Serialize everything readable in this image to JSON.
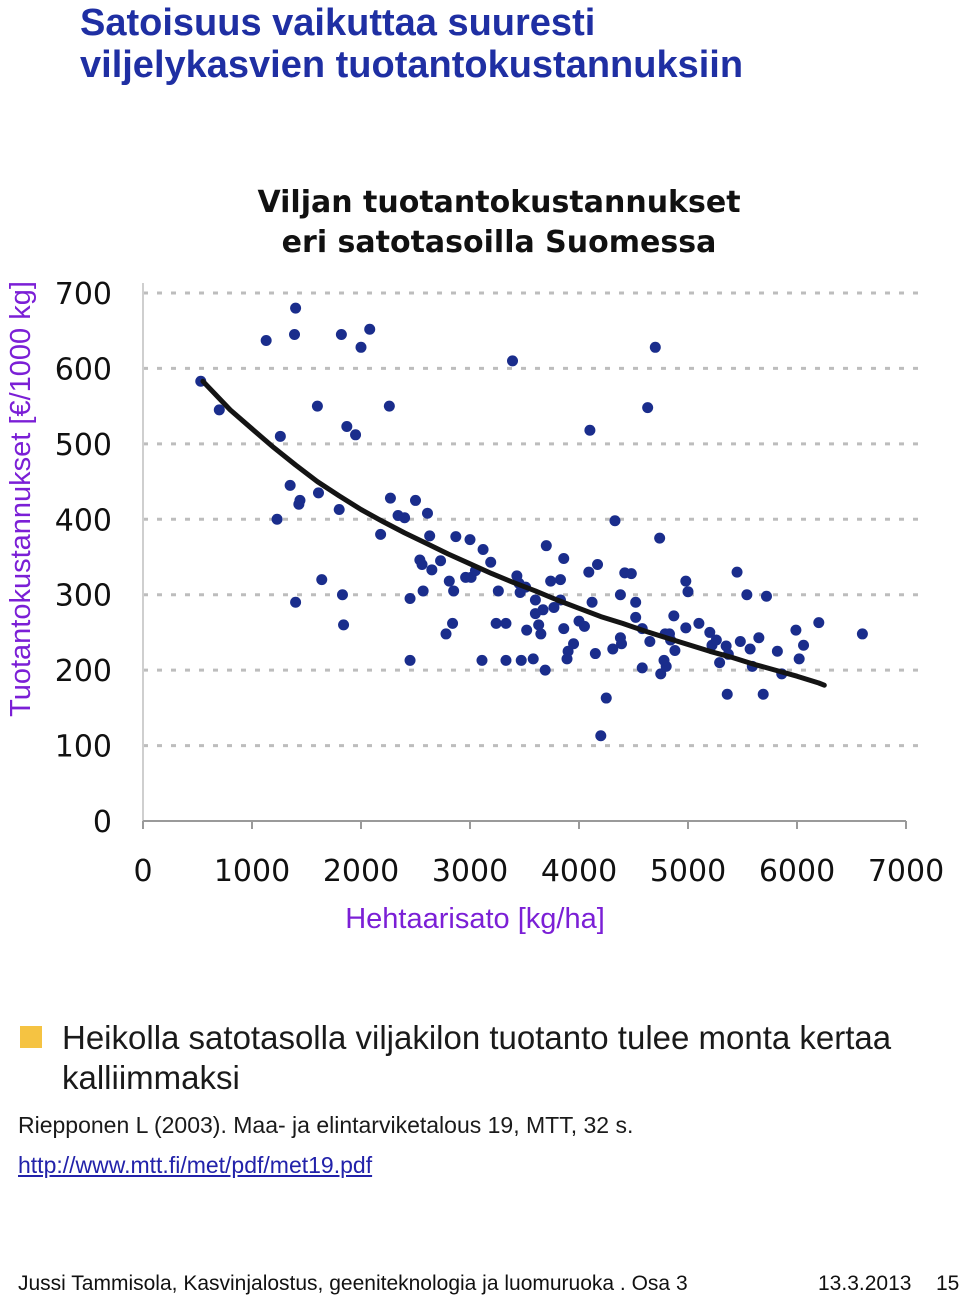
{
  "slide": {
    "title_line1": "Satoisuus vaikuttaa suuresti",
    "title_line2": "viljelykasvien tuotantokustannuksiin",
    "bullet": "Heikolla satotasolla viljakilon tuotanto tulee monta kertaa kalliimmaksi",
    "reference": "Riepponen L (2003). Maa- ja elintarviketalous 19, MTT, 32 s.",
    "link": "http://www.mtt.fi/met/pdf/met19.pdf",
    "footer_text": "Jussi Tammisola, Kasvinjalostus, geeniteknologia ja luomuruoka . Osa 3",
    "footer_date": "13.3.2013",
    "footer_page": "15"
  },
  "colors": {
    "title": "#1f2fa3",
    "axis_label": "#7b1fd6",
    "points": "#1a2d8c",
    "trend": "#141414",
    "bullet": "#f5c342",
    "gridline": "#bdbdbd"
  },
  "chart_data": {
    "type": "scatter",
    "title_line1": "Viljan tuotantokustannukset",
    "title_line2": "eri satotasoilla Suomessa",
    "xlabel": "Hehtaarisato [kg/ha]",
    "ylabel": "Tuotantokustannukset  [€/1000 kg]",
    "xlim": [
      0,
      7000
    ],
    "ylim": [
      0,
      700
    ],
    "xticks": [
      0,
      1000,
      2000,
      3000,
      4000,
      5000,
      6000,
      7000
    ],
    "yticks": [
      0,
      100,
      200,
      300,
      400,
      500,
      600,
      700
    ],
    "grid": "horizontal dashed",
    "points": [
      [
        530,
        583
      ],
      [
        700,
        545
      ],
      [
        1130,
        637
      ],
      [
        1230,
        400
      ],
      [
        1260,
        510
      ],
      [
        1350,
        445
      ],
      [
        1400,
        290
      ],
      [
        1390,
        645
      ],
      [
        1400,
        680
      ],
      [
        1430,
        420
      ],
      [
        1440,
        425
      ],
      [
        1600,
        550
      ],
      [
        1610,
        435
      ],
      [
        1640,
        320
      ],
      [
        1800,
        413
      ],
      [
        1820,
        645
      ],
      [
        1830,
        300
      ],
      [
        1840,
        260
      ],
      [
        1870,
        523
      ],
      [
        1950,
        512
      ],
      [
        2000,
        628
      ],
      [
        2080,
        652
      ],
      [
        2180,
        380
      ],
      [
        2260,
        550
      ],
      [
        2270,
        428
      ],
      [
        2340,
        405
      ],
      [
        2450,
        213
      ],
      [
        2450,
        295
      ],
      [
        2400,
        402
      ],
      [
        2500,
        425
      ],
      [
        2540,
        346
      ],
      [
        2560,
        340
      ],
      [
        2570,
        305
      ],
      [
        2610,
        408
      ],
      [
        2630,
        378
      ],
      [
        2650,
        333
      ],
      [
        2730,
        345
      ],
      [
        2780,
        248
      ],
      [
        2810,
        318
      ],
      [
        2840,
        262
      ],
      [
        2850,
        305
      ],
      [
        2870,
        377
      ],
      [
        2960,
        323
      ],
      [
        3010,
        323
      ],
      [
        3000,
        373
      ],
      [
        3050,
        332
      ],
      [
        3110,
        213
      ],
      [
        3120,
        360
      ],
      [
        3190,
        343
      ],
      [
        3240,
        262
      ],
      [
        3330,
        262
      ],
      [
        3330,
        213
      ],
      [
        3390,
        610
      ],
      [
        3430,
        325
      ],
      [
        3450,
        315
      ],
      [
        3460,
        303
      ],
      [
        3470,
        213
      ],
      [
        3510,
        310
      ],
      [
        3520,
        253
      ],
      [
        3580,
        215
      ],
      [
        3600,
        275
      ],
      [
        3600,
        293
      ],
      [
        3630,
        260
      ],
      [
        3650,
        248
      ],
      [
        3690,
        200
      ],
      [
        3700,
        365
      ],
      [
        3740,
        318
      ],
      [
        3770,
        283
      ],
      [
        3830,
        293
      ],
      [
        3830,
        320
      ],
      [
        3860,
        348
      ],
      [
        3860,
        255
      ],
      [
        3900,
        225
      ],
      [
        3950,
        235
      ],
      [
        4000,
        265
      ],
      [
        4050,
        258
      ],
      [
        4090,
        330
      ],
      [
        4100,
        518
      ],
      [
        4120,
        290
      ],
      [
        4150,
        222
      ],
      [
        4200,
        113
      ],
      [
        4250,
        163
      ],
      [
        4310,
        228
      ],
      [
        4330,
        398
      ],
      [
        4380,
        243
      ],
      [
        4390,
        235
      ],
      [
        4420,
        329
      ],
      [
        4480,
        328
      ],
      [
        4520,
        270
      ],
      [
        4520,
        290
      ],
      [
        4580,
        203
      ],
      [
        4630,
        548
      ],
      [
        4650,
        238
      ],
      [
        4700,
        628
      ],
      [
        4740,
        375
      ],
      [
        4750,
        195
      ],
      [
        4790,
        248
      ],
      [
        4800,
        205
      ],
      [
        4830,
        248
      ],
      [
        4840,
        240
      ],
      [
        4870,
        272
      ],
      [
        4880,
        226
      ],
      [
        4980,
        318
      ],
      [
        4980,
        256
      ],
      [
        5000,
        304
      ],
      [
        5100,
        262
      ],
      [
        5200,
        250
      ],
      [
        5220,
        233
      ],
      [
        5290,
        210
      ],
      [
        5350,
        232
      ],
      [
        5360,
        168
      ],
      [
        5450,
        330
      ],
      [
        5480,
        238
      ],
      [
        5540,
        300
      ],
      [
        5590,
        205
      ],
      [
        5650,
        243
      ],
      [
        5690,
        168
      ],
      [
        5720,
        298
      ],
      [
        5820,
        225
      ],
      [
        5860,
        195
      ],
      [
        5990,
        253
      ],
      [
        6020,
        215
      ],
      [
        6060,
        233
      ],
      [
        6200,
        263
      ],
      [
        6600,
        248
      ],
      [
        5370,
        221
      ],
      [
        5570,
        228
      ],
      [
        3890,
        215
      ],
      [
        4380,
        300
      ],
      [
        4580,
        255
      ],
      [
        3670,
        280
      ],
      [
        4170,
        340
      ],
      [
        5260,
        240
      ],
      [
        4780,
        213
      ],
      [
        3260,
        305
      ]
    ],
    "trend": {
      "name": "",
      "x": [
        550,
        800,
        1000,
        1200,
        1400,
        1600,
        1800,
        2000,
        2200,
        2400,
        2600,
        2800,
        3000,
        3200,
        3400,
        3600,
        3800,
        4000,
        4200,
        4400,
        4600,
        4800,
        5000,
        5200,
        5400,
        5600,
        5800,
        6000,
        6200,
        6250
      ],
      "y": [
        583,
        545,
        520,
        495,
        472,
        450,
        431,
        413,
        397,
        382,
        368,
        354,
        341,
        328,
        316,
        305,
        293,
        282,
        271,
        262,
        252,
        243,
        234,
        225,
        217,
        208,
        200,
        192,
        183,
        180
      ]
    }
  }
}
